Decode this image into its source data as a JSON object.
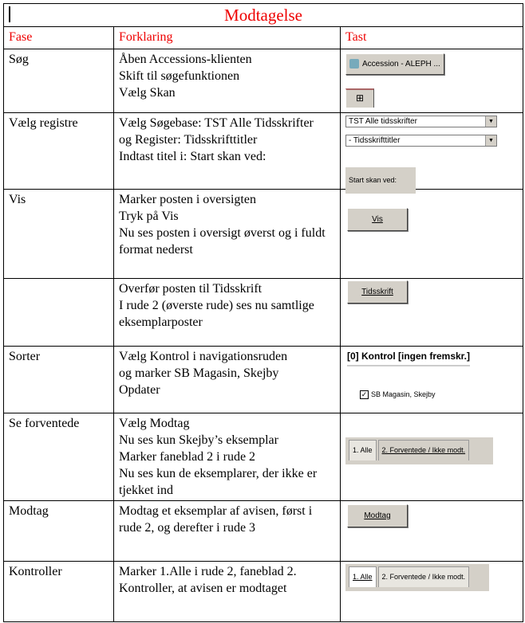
{
  "title": "Modtagelse",
  "headers": [
    "Fase",
    "Forklaring",
    "Tast"
  ],
  "rows": [
    {
      "fase": "Søg",
      "lines": [
        "Åben Accessions-klienten",
        "Skift til søgefunktionen",
        "Vælg Skan"
      ]
    },
    {
      "fase": "Vælg registre",
      "lines": [
        "Vælg Søgebase: TST Alle Tidsskrifter",
        "og Register: Tidsskrifttitler",
        "Indtast titel i: Start skan ved:"
      ]
    },
    {
      "fase": "Vis",
      "lines": [
        "Marker posten i oversigten",
        "Tryk på Vis",
        "Nu ses posten i oversigt øverst og i fuldt format nederst"
      ]
    },
    {
      "fase": "",
      "lines": [
        "Overfør posten til Tidsskrift",
        "I rude 2 (øverste rude) ses nu samtlige eksemplarposter"
      ]
    },
    {
      "fase": "Sorter",
      "lines": [
        "Vælg Kontrol i navigationsruden",
        "og marker SB Magasin, Skejby",
        "Opdater"
      ]
    },
    {
      "fase": "Se forventede",
      "lines": [
        "Vælg Modtag",
        "Nu ses kun Skejby’s eksemplar",
        "Marker faneblad 2 i rude 2",
        "Nu ses kun de eksemplarer, der ikke er tjekket ind"
      ]
    },
    {
      "fase": "Modtag",
      "lines": [
        "Modtag et eksemplar af avisen, først i rude 2, og derefter i rude 3"
      ]
    },
    {
      "fase": "Kontroller",
      "lines": [
        "Marker 1.Alle i rude 2, faneblad 2.",
        "Kontroller, at avisen er modtaget"
      ]
    }
  ],
  "ui": {
    "accession_button": "Accession - ALEPH ...",
    "base_select": "TST Alle tidsskrifter",
    "register_select": "- Tidsskrifttitler",
    "start_scan_label": "Start skan ved:",
    "vis_button": "Vis",
    "tidsskrift_button": "Tidsskrift",
    "kontrol_node": "[0] Kontrol [ingen fremskr.]",
    "checkbox_label": "SB Magasin, Skejby",
    "checkbox_checked": true,
    "tab1": "1. Alle",
    "tab2": "2. Forventede / Ikke modt.",
    "modtag_button": "Modtag"
  }
}
